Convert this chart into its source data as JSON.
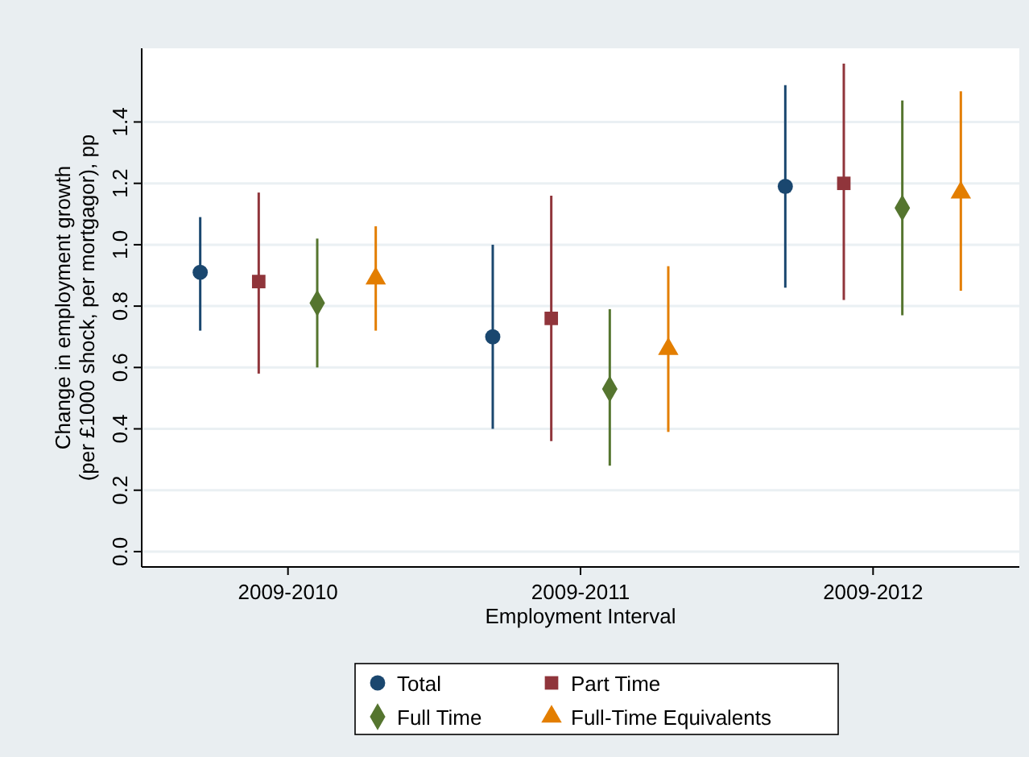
{
  "chart_data": {
    "type": "scatter",
    "xlabel": "Employment Interval",
    "ylabel": "Change in employment growth\n(per £1000 shock, per mortgagor), pp",
    "categories": [
      "2009-2010",
      "2009-2011",
      "2009-2012"
    ],
    "ylim": [
      -0.05,
      1.64
    ],
    "yticks": [
      {
        "value": 0,
        "label": "0.0"
      },
      0.2,
      0.4,
      0.6,
      0.8,
      {
        "value": 1,
        "label": "1.0"
      },
      1.2,
      1.4
    ],
    "grid": "y",
    "legend": "bottom",
    "series": [
      {
        "name": "Total",
        "color": "#1a476f",
        "marker": "circle",
        "values": [
          0.91,
          0.7,
          1.19
        ],
        "errors": [
          [
            0.72,
            1.09
          ],
          [
            0.4,
            1.0
          ],
          [
            0.86,
            1.52
          ]
        ]
      },
      {
        "name": "Part Time",
        "color": "#90353b",
        "marker": "square",
        "values": [
          0.88,
          0.76,
          1.2
        ],
        "errors": [
          [
            0.58,
            1.17
          ],
          [
            0.36,
            1.16
          ],
          [
            0.82,
            1.59
          ]
        ]
      },
      {
        "name": "Full Time",
        "color": "#55752f",
        "marker": "diamond",
        "values": [
          0.81,
          0.53,
          1.12
        ],
        "errors": [
          [
            0.6,
            1.02
          ],
          [
            0.28,
            0.79
          ],
          [
            0.77,
            1.47
          ]
        ]
      },
      {
        "name": "Full-Time Equivalents",
        "color": "#e37e00",
        "marker": "triangle",
        "values": [
          0.89,
          0.66,
          1.17
        ],
        "errors": [
          [
            0.72,
            1.06
          ],
          [
            0.39,
            0.93
          ],
          [
            0.85,
            1.5
          ]
        ]
      }
    ]
  }
}
